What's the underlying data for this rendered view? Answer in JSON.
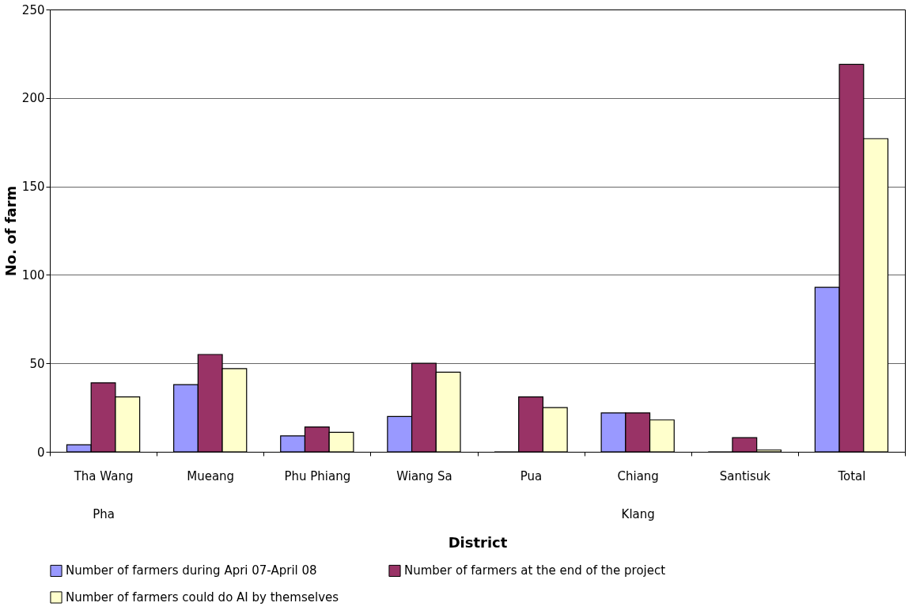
{
  "chart_data": {
    "type": "bar",
    "xlabel": "District",
    "ylabel": "No. of farm",
    "categories": [
      "Tha Wang\nPha",
      "Mueang",
      "Phu Phiang",
      "Wiang Sa",
      "Pua",
      "Chiang\nKlang",
      "Santisuk",
      "Total"
    ],
    "series": [
      {
        "name": "Number of farmers  during Apri 07-April 08",
        "color": "#9999ff",
        "values": [
          4,
          38,
          9,
          20,
          0,
          22,
          0,
          93
        ]
      },
      {
        "name": "Number of farmers at the end of the project",
        "color": "#993366",
        "values": [
          39,
          55,
          14,
          50,
          31,
          22,
          8,
          219
        ]
      },
      {
        "name": "Number of farmers could do AI by themselves",
        "color": "#ffffcc",
        "values": [
          31,
          47,
          11,
          45,
          25,
          18,
          1,
          177
        ]
      }
    ],
    "ylim": [
      0,
      250
    ],
    "yticks": [
      0,
      50,
      100,
      150,
      200,
      250
    ],
    "grid": "y",
    "legend": "bottom"
  }
}
